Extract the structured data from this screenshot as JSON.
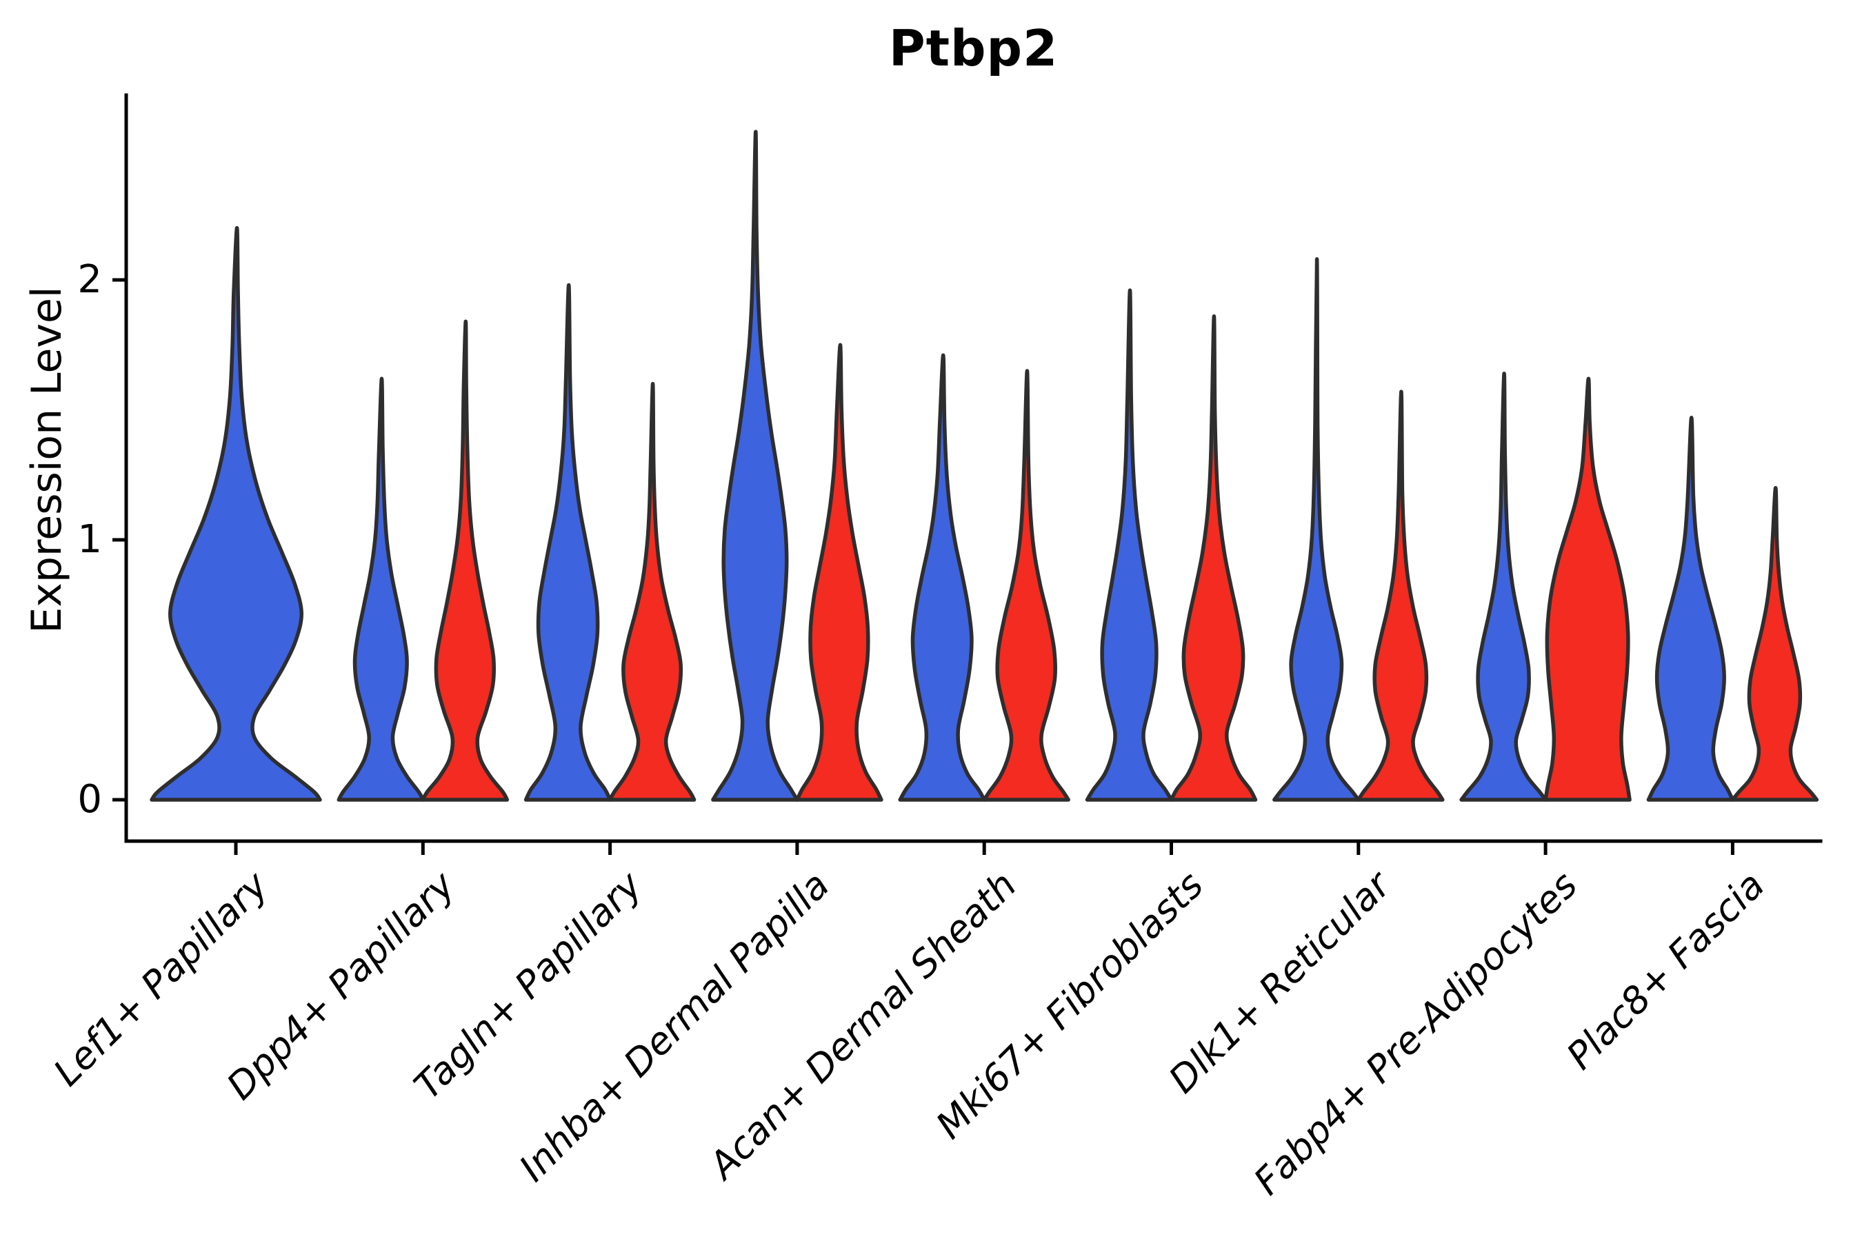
{
  "title": "Ptbp2",
  "chart_data": {
    "type": "violin",
    "title": "Ptbp2",
    "xlabel": "",
    "ylabel": "Expression Level",
    "y_ticks": [
      0,
      1,
      2
    ],
    "ylim": [
      0,
      2.71
    ],
    "grid": false,
    "legend": "none",
    "colors": {
      "blue_series": "#3e63de",
      "red_series": "#f32b20",
      "outline": "#2e2e2e",
      "axis": "#000000"
    },
    "categories": [
      "Lef1+ Papillary",
      "Dpp4+ Papillary",
      "Tagln+ Papillary",
      "Inhba+ Dermal Papilla",
      "Acan+ Dermal Sheath",
      "Mki67+ Fibroblasts",
      "Dlk1+ Reticular",
      "Fabp4+ Pre-Adipocytes",
      "Plac8+ Fascia"
    ],
    "violins": [
      {
        "category_index": 0,
        "series": "blue",
        "max_expression": 2.2,
        "width_scale": 2,
        "profile": [
          [
            0,
            1.0
          ],
          [
            0.03,
            0.93
          ],
          [
            0.09,
            0.7
          ],
          [
            0.16,
            0.42
          ],
          [
            0.24,
            0.22
          ],
          [
            0.32,
            0.22
          ],
          [
            0.42,
            0.4
          ],
          [
            0.52,
            0.58
          ],
          [
            0.62,
            0.72
          ],
          [
            0.72,
            0.78
          ],
          [
            0.83,
            0.7
          ],
          [
            0.95,
            0.55
          ],
          [
            1.08,
            0.38
          ],
          [
            1.22,
            0.24
          ],
          [
            1.38,
            0.13
          ],
          [
            1.55,
            0.07
          ],
          [
            1.75,
            0.04
          ],
          [
            1.95,
            0.025
          ],
          [
            2.2,
            0.013
          ]
        ]
      },
      {
        "category_index": 1,
        "series": "blue",
        "max_expression": 1.62,
        "width_scale": 1,
        "profile": [
          [
            0,
            1.0
          ],
          [
            0.03,
            0.9
          ],
          [
            0.09,
            0.62
          ],
          [
            0.16,
            0.38
          ],
          [
            0.24,
            0.28
          ],
          [
            0.33,
            0.4
          ],
          [
            0.43,
            0.56
          ],
          [
            0.53,
            0.62
          ],
          [
            0.63,
            0.55
          ],
          [
            0.75,
            0.4
          ],
          [
            0.87,
            0.25
          ],
          [
            1.0,
            0.14
          ],
          [
            1.15,
            0.08
          ],
          [
            1.35,
            0.045
          ],
          [
            1.62,
            0.02
          ]
        ]
      },
      {
        "category_index": 1,
        "series": "red",
        "max_expression": 1.84,
        "width_scale": 1,
        "profile": [
          [
            0,
            1.0
          ],
          [
            0.03,
            0.9
          ],
          [
            0.09,
            0.6
          ],
          [
            0.16,
            0.36
          ],
          [
            0.24,
            0.3
          ],
          [
            0.34,
            0.5
          ],
          [
            0.44,
            0.66
          ],
          [
            0.54,
            0.68
          ],
          [
            0.64,
            0.58
          ],
          [
            0.75,
            0.44
          ],
          [
            0.87,
            0.3
          ],
          [
            1.0,
            0.18
          ],
          [
            1.15,
            0.1
          ],
          [
            1.35,
            0.055
          ],
          [
            1.6,
            0.03
          ],
          [
            1.84,
            0.016
          ]
        ]
      },
      {
        "category_index": 2,
        "series": "blue",
        "max_expression": 1.98,
        "width_scale": 1,
        "profile": [
          [
            0,
            1.0
          ],
          [
            0.04,
            0.88
          ],
          [
            0.1,
            0.62
          ],
          [
            0.18,
            0.4
          ],
          [
            0.28,
            0.3
          ],
          [
            0.4,
            0.44
          ],
          [
            0.52,
            0.6
          ],
          [
            0.64,
            0.7
          ],
          [
            0.76,
            0.68
          ],
          [
            0.88,
            0.56
          ],
          [
            1.0,
            0.42
          ],
          [
            1.12,
            0.28
          ],
          [
            1.26,
            0.17
          ],
          [
            1.42,
            0.09
          ],
          [
            1.62,
            0.05
          ],
          [
            1.98,
            0.018
          ]
        ]
      },
      {
        "category_index": 2,
        "series": "red",
        "max_expression": 1.6,
        "width_scale": 1,
        "profile": [
          [
            0,
            1.0
          ],
          [
            0.03,
            0.9
          ],
          [
            0.09,
            0.64
          ],
          [
            0.16,
            0.42
          ],
          [
            0.23,
            0.33
          ],
          [
            0.32,
            0.48
          ],
          [
            0.42,
            0.64
          ],
          [
            0.52,
            0.68
          ],
          [
            0.62,
            0.56
          ],
          [
            0.73,
            0.38
          ],
          [
            0.85,
            0.22
          ],
          [
            0.98,
            0.12
          ],
          [
            1.12,
            0.065
          ],
          [
            1.3,
            0.035
          ],
          [
            1.6,
            0.016
          ]
        ]
      },
      {
        "category_index": 3,
        "series": "blue",
        "max_expression": 2.57,
        "width_scale": 1,
        "profile": [
          [
            0,
            1.0
          ],
          [
            0.04,
            0.85
          ],
          [
            0.11,
            0.58
          ],
          [
            0.2,
            0.38
          ],
          [
            0.3,
            0.3
          ],
          [
            0.42,
            0.4
          ],
          [
            0.55,
            0.54
          ],
          [
            0.68,
            0.65
          ],
          [
            0.8,
            0.72
          ],
          [
            0.92,
            0.75
          ],
          [
            1.04,
            0.72
          ],
          [
            1.16,
            0.63
          ],
          [
            1.28,
            0.52
          ],
          [
            1.42,
            0.38
          ],
          [
            1.58,
            0.25
          ],
          [
            1.75,
            0.14
          ],
          [
            1.95,
            0.07
          ],
          [
            2.2,
            0.035
          ],
          [
            2.57,
            0.015
          ]
        ]
      },
      {
        "category_index": 3,
        "series": "red",
        "max_expression": 1.75,
        "width_scale": 1,
        "profile": [
          [
            0,
            1.0
          ],
          [
            0.04,
            0.88
          ],
          [
            0.11,
            0.62
          ],
          [
            0.2,
            0.45
          ],
          [
            0.3,
            0.42
          ],
          [
            0.42,
            0.56
          ],
          [
            0.54,
            0.67
          ],
          [
            0.66,
            0.68
          ],
          [
            0.78,
            0.6
          ],
          [
            0.9,
            0.46
          ],
          [
            1.02,
            0.32
          ],
          [
            1.15,
            0.2
          ],
          [
            1.3,
            0.11
          ],
          [
            1.5,
            0.055
          ],
          [
            1.75,
            0.025
          ]
        ]
      },
      {
        "category_index": 4,
        "series": "blue",
        "max_expression": 1.71,
        "width_scale": 1,
        "profile": [
          [
            0,
            1.0
          ],
          [
            0.04,
            0.86
          ],
          [
            0.1,
            0.6
          ],
          [
            0.18,
            0.42
          ],
          [
            0.27,
            0.38
          ],
          [
            0.38,
            0.52
          ],
          [
            0.5,
            0.65
          ],
          [
            0.62,
            0.7
          ],
          [
            0.74,
            0.62
          ],
          [
            0.86,
            0.48
          ],
          [
            0.98,
            0.32
          ],
          [
            1.1,
            0.2
          ],
          [
            1.25,
            0.11
          ],
          [
            1.45,
            0.055
          ],
          [
            1.71,
            0.025
          ]
        ]
      },
      {
        "category_index": 4,
        "series": "red",
        "max_expression": 1.65,
        "width_scale": 1,
        "profile": [
          [
            0,
            1.0
          ],
          [
            0.03,
            0.88
          ],
          [
            0.09,
            0.62
          ],
          [
            0.17,
            0.42
          ],
          [
            0.25,
            0.36
          ],
          [
            0.36,
            0.54
          ],
          [
            0.47,
            0.68
          ],
          [
            0.58,
            0.66
          ],
          [
            0.7,
            0.52
          ],
          [
            0.82,
            0.34
          ],
          [
            0.95,
            0.19
          ],
          [
            1.1,
            0.1
          ],
          [
            1.3,
            0.05
          ],
          [
            1.65,
            0.02
          ]
        ]
      },
      {
        "category_index": 5,
        "series": "blue",
        "max_expression": 1.96,
        "width_scale": 1,
        "profile": [
          [
            0,
            1.0
          ],
          [
            0.04,
            0.85
          ],
          [
            0.1,
            0.58
          ],
          [
            0.18,
            0.4
          ],
          [
            0.26,
            0.34
          ],
          [
            0.37,
            0.5
          ],
          [
            0.48,
            0.62
          ],
          [
            0.6,
            0.64
          ],
          [
            0.72,
            0.54
          ],
          [
            0.85,
            0.4
          ],
          [
            0.98,
            0.27
          ],
          [
            1.12,
            0.16
          ],
          [
            1.3,
            0.085
          ],
          [
            1.55,
            0.045
          ],
          [
            1.96,
            0.016
          ]
        ]
      },
      {
        "category_index": 5,
        "series": "red",
        "max_expression": 1.86,
        "width_scale": 1,
        "profile": [
          [
            0,
            1.0
          ],
          [
            0.04,
            0.87
          ],
          [
            0.1,
            0.6
          ],
          [
            0.18,
            0.4
          ],
          [
            0.26,
            0.32
          ],
          [
            0.37,
            0.52
          ],
          [
            0.48,
            0.68
          ],
          [
            0.58,
            0.7
          ],
          [
            0.7,
            0.58
          ],
          [
            0.82,
            0.42
          ],
          [
            0.95,
            0.26
          ],
          [
            1.1,
            0.14
          ],
          [
            1.28,
            0.07
          ],
          [
            1.5,
            0.035
          ],
          [
            1.86,
            0.015
          ]
        ]
      },
      {
        "category_index": 6,
        "series": "blue",
        "max_expression": 2.08,
        "width_scale": 1,
        "profile": [
          [
            0,
            1.0
          ],
          [
            0.03,
            0.86
          ],
          [
            0.09,
            0.56
          ],
          [
            0.16,
            0.34
          ],
          [
            0.24,
            0.27
          ],
          [
            0.33,
            0.4
          ],
          [
            0.43,
            0.55
          ],
          [
            0.53,
            0.6
          ],
          [
            0.63,
            0.5
          ],
          [
            0.74,
            0.34
          ],
          [
            0.86,
            0.2
          ],
          [
            1.0,
            0.11
          ],
          [
            1.18,
            0.06
          ],
          [
            1.45,
            0.03
          ],
          [
            2.08,
            0.013
          ]
        ]
      },
      {
        "category_index": 6,
        "series": "red",
        "max_expression": 1.57,
        "width_scale": 1,
        "profile": [
          [
            0,
            1.0
          ],
          [
            0.03,
            0.88
          ],
          [
            0.09,
            0.6
          ],
          [
            0.16,
            0.38
          ],
          [
            0.23,
            0.3
          ],
          [
            0.32,
            0.46
          ],
          [
            0.42,
            0.6
          ],
          [
            0.52,
            0.6
          ],
          [
            0.63,
            0.46
          ],
          [
            0.74,
            0.3
          ],
          [
            0.86,
            0.17
          ],
          [
            1.0,
            0.09
          ],
          [
            1.18,
            0.045
          ],
          [
            1.57,
            0.018
          ]
        ]
      },
      {
        "category_index": 7,
        "series": "blue",
        "max_expression": 1.64,
        "width_scale": 1,
        "profile": [
          [
            0,
            1.0
          ],
          [
            0.03,
            0.86
          ],
          [
            0.09,
            0.56
          ],
          [
            0.16,
            0.36
          ],
          [
            0.23,
            0.3
          ],
          [
            0.31,
            0.44
          ],
          [
            0.4,
            0.58
          ],
          [
            0.5,
            0.6
          ],
          [
            0.6,
            0.5
          ],
          [
            0.71,
            0.35
          ],
          [
            0.83,
            0.21
          ],
          [
            0.96,
            0.12
          ],
          [
            1.12,
            0.065
          ],
          [
            1.35,
            0.035
          ],
          [
            1.64,
            0.016
          ]
        ]
      },
      {
        "category_index": 7,
        "series": "red",
        "max_expression": 1.62,
        "width_scale": 1,
        "profile": [
          [
            0,
            1.0
          ],
          [
            0.06,
            0.94
          ],
          [
            0.14,
            0.84
          ],
          [
            0.24,
            0.8
          ],
          [
            0.36,
            0.86
          ],
          [
            0.5,
            0.94
          ],
          [
            0.64,
            0.96
          ],
          [
            0.78,
            0.88
          ],
          [
            0.92,
            0.7
          ],
          [
            1.04,
            0.48
          ],
          [
            1.15,
            0.28
          ],
          [
            1.28,
            0.13
          ],
          [
            1.45,
            0.05
          ],
          [
            1.62,
            0.022
          ]
        ]
      },
      {
        "category_index": 8,
        "series": "blue",
        "max_expression": 1.47,
        "width_scale": 1,
        "profile": [
          [
            0,
            1.0
          ],
          [
            0.04,
            0.88
          ],
          [
            0.1,
            0.66
          ],
          [
            0.18,
            0.54
          ],
          [
            0.27,
            0.6
          ],
          [
            0.37,
            0.74
          ],
          [
            0.47,
            0.8
          ],
          [
            0.57,
            0.74
          ],
          [
            0.68,
            0.58
          ],
          [
            0.79,
            0.4
          ],
          [
            0.9,
            0.24
          ],
          [
            1.02,
            0.13
          ],
          [
            1.17,
            0.065
          ],
          [
            1.47,
            0.022
          ]
        ]
      },
      {
        "category_index": 8,
        "series": "red",
        "max_expression": 1.2,
        "width_scale": 1,
        "profile": [
          [
            0,
            1.0
          ],
          [
            0.03,
            0.85
          ],
          [
            0.08,
            0.58
          ],
          [
            0.14,
            0.42
          ],
          [
            0.2,
            0.38
          ],
          [
            0.28,
            0.5
          ],
          [
            0.37,
            0.6
          ],
          [
            0.46,
            0.58
          ],
          [
            0.56,
            0.45
          ],
          [
            0.66,
            0.3
          ],
          [
            0.76,
            0.18
          ],
          [
            0.87,
            0.1
          ],
          [
            1.0,
            0.05
          ],
          [
            1.2,
            0.022
          ]
        ]
      }
    ]
  }
}
